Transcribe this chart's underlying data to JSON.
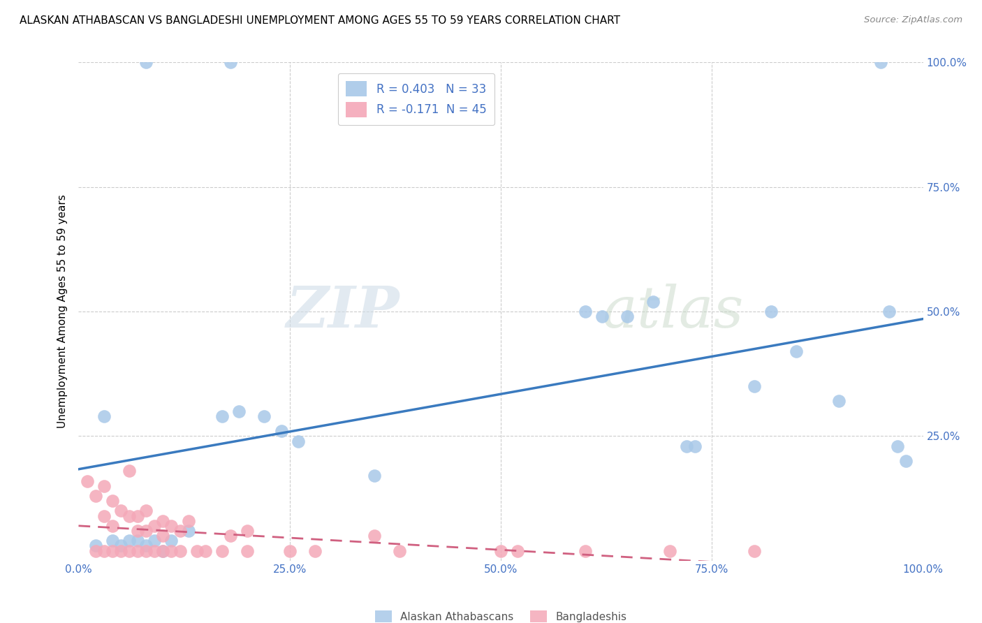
{
  "title": "ALASKAN ATHABASCAN VS BANGLADESHI UNEMPLOYMENT AMONG AGES 55 TO 59 YEARS CORRELATION CHART",
  "source": "Source: ZipAtlas.com",
  "ylabel": "Unemployment Among Ages 55 to 59 years",
  "xlim": [
    0,
    1.0
  ],
  "ylim": [
    0,
    1.0
  ],
  "r_blue": 0.403,
  "n_blue": 33,
  "r_pink": -0.171,
  "n_pink": 45,
  "blue_color": "#a8c8e8",
  "pink_color": "#f4a8b8",
  "line_blue": "#3a7abf",
  "line_pink": "#d06080",
  "watermark_zip": "ZIP",
  "watermark_atlas": "atlas",
  "blue_scatter_x": [
    0.03,
    0.08,
    0.18,
    0.02,
    0.04,
    0.05,
    0.06,
    0.07,
    0.08,
    0.09,
    0.1,
    0.11,
    0.13,
    0.17,
    0.19,
    0.22,
    0.24,
    0.26,
    0.35,
    0.6,
    0.62,
    0.65,
    0.68,
    0.72,
    0.73,
    0.8,
    0.82,
    0.85,
    0.9,
    0.95,
    0.96,
    0.97,
    0.98
  ],
  "blue_scatter_y": [
    0.29,
    1.0,
    1.0,
    0.03,
    0.04,
    0.03,
    0.04,
    0.04,
    0.03,
    0.04,
    0.02,
    0.04,
    0.06,
    0.29,
    0.3,
    0.29,
    0.26,
    0.24,
    0.17,
    0.5,
    0.49,
    0.49,
    0.52,
    0.23,
    0.23,
    0.35,
    0.5,
    0.42,
    0.32,
    1.0,
    0.5,
    0.23,
    0.2
  ],
  "pink_scatter_x": [
    0.01,
    0.02,
    0.02,
    0.03,
    0.03,
    0.03,
    0.04,
    0.04,
    0.04,
    0.05,
    0.05,
    0.06,
    0.06,
    0.06,
    0.07,
    0.07,
    0.07,
    0.08,
    0.08,
    0.08,
    0.09,
    0.09,
    0.1,
    0.1,
    0.1,
    0.11,
    0.11,
    0.12,
    0.12,
    0.13,
    0.14,
    0.15,
    0.17,
    0.18,
    0.2,
    0.2,
    0.25,
    0.28,
    0.35,
    0.38,
    0.5,
    0.52,
    0.6,
    0.7,
    0.8
  ],
  "pink_scatter_y": [
    0.16,
    0.13,
    0.02,
    0.15,
    0.09,
    0.02,
    0.12,
    0.07,
    0.02,
    0.1,
    0.02,
    0.18,
    0.09,
    0.02,
    0.09,
    0.06,
    0.02,
    0.1,
    0.06,
    0.02,
    0.07,
    0.02,
    0.08,
    0.05,
    0.02,
    0.07,
    0.02,
    0.06,
    0.02,
    0.08,
    0.02,
    0.02,
    0.02,
    0.05,
    0.06,
    0.02,
    0.02,
    0.02,
    0.05,
    0.02,
    0.02,
    0.02,
    0.02,
    0.02,
    0.02
  ]
}
